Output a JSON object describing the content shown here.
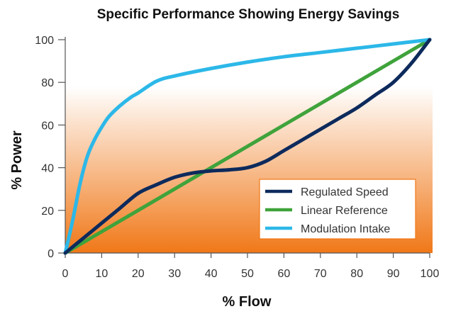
{
  "chart_data": {
    "type": "line",
    "title": "Specific Performance Showing Energy Savings",
    "xlabel": "% Flow",
    "ylabel": "% Power",
    "xlim": [
      0,
      100
    ],
    "ylim": [
      0,
      100
    ],
    "xticks": [
      0,
      10,
      20,
      30,
      40,
      50,
      60,
      70,
      80,
      90,
      100
    ],
    "yticks": [
      0,
      20,
      40,
      60,
      80,
      100
    ],
    "grid": false,
    "legend_position": "bottom-right",
    "background": "vertical gradient from white (top) to orange (bottom)",
    "colors": {
      "background_top": "#ffffff",
      "background_bottom": "#f07818",
      "legend_border": "#f07818",
      "axis": "#555555"
    },
    "series": [
      {
        "name": "Regulated Speed",
        "color": "#0d2a5c",
        "x": [
          0,
          5,
          10,
          15,
          20,
          25,
          30,
          35,
          40,
          45,
          50,
          55,
          60,
          65,
          70,
          75,
          80,
          85,
          90,
          95,
          100
        ],
        "y": [
          0,
          7,
          14,
          21,
          28,
          32,
          35.5,
          37.5,
          38.5,
          39,
          40,
          43,
          48,
          53,
          58,
          63,
          68,
          74,
          80,
          89,
          100
        ]
      },
      {
        "name": "Linear Reference",
        "color": "#3fa33b",
        "x": [
          0,
          100
        ],
        "y": [
          0,
          100
        ]
      },
      {
        "name": "Modulation Intake",
        "color": "#2cb8e8",
        "x": [
          0,
          2,
          4,
          6,
          8,
          10,
          12,
          15,
          18,
          20,
          25,
          30,
          40,
          50,
          60,
          70,
          80,
          90,
          100
        ],
        "y": [
          0,
          15,
          32,
          45,
          53,
          59,
          64,
          69,
          73,
          75,
          80.5,
          83,
          86.5,
          89.5,
          92,
          94,
          96,
          98,
          100
        ]
      }
    ]
  }
}
